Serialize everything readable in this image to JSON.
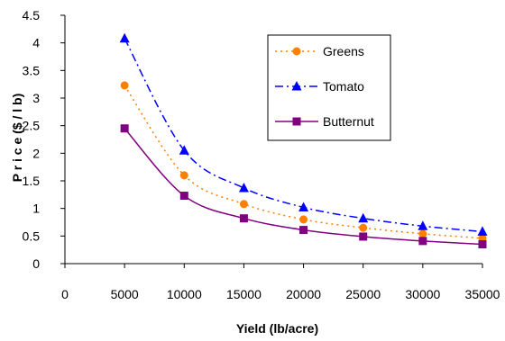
{
  "chart_data": {
    "type": "line",
    "title": "",
    "xlabel": "Yield (lb/acre)",
    "ylabel": "P r i c e   ($ / l b)",
    "xlim": [
      0,
      35000
    ],
    "ylim": [
      0,
      4.5
    ],
    "x_ticks": [
      0,
      5000,
      10000,
      15000,
      20000,
      25000,
      30000,
      35000
    ],
    "x_tick_labels": [
      "0",
      "5000",
      "10000",
      "15000",
      "20000",
      "25000",
      "30000",
      "35000"
    ],
    "y_ticks": [
      0,
      0.5,
      1,
      1.5,
      2,
      2.5,
      3,
      3.5,
      4,
      4.5
    ],
    "y_tick_labels": [
      "0",
      "0.5",
      "1",
      "1.5",
      "2",
      "2.5",
      "3",
      "3.5",
      "4",
      "4.5"
    ],
    "grid": false,
    "legend_position": "top-right",
    "x": [
      5000,
      10000,
      15000,
      20000,
      25000,
      30000,
      35000
    ],
    "series": [
      {
        "name": "Greens",
        "values": [
          3.23,
          1.6,
          1.08,
          0.8,
          0.65,
          0.54,
          0.46
        ],
        "color": "#FF7F00",
        "marker": "circle",
        "dash": "dotted"
      },
      {
        "name": "Tomato",
        "values": [
          4.08,
          2.05,
          1.37,
          1.02,
          0.82,
          0.68,
          0.58
        ],
        "color": "#0000FF",
        "marker": "triangle",
        "dash": "dashdot"
      },
      {
        "name": "Butternut",
        "values": [
          2.45,
          1.23,
          0.82,
          0.61,
          0.49,
          0.41,
          0.35
        ],
        "color": "#800080",
        "marker": "square",
        "dash": "solid"
      }
    ]
  }
}
